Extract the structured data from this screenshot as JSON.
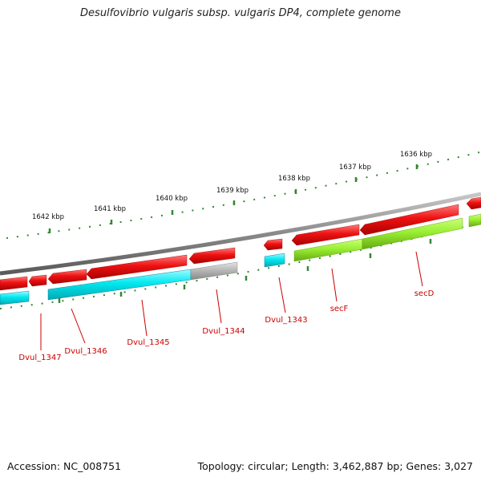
{
  "title": "Desulfovibrio vulgaris subsp. vulgaris DP4, complete genome",
  "footer": {
    "accession": "Accession: NC_008751",
    "topology": "Topology: circular; Length: 3,462,887 bp; Genes: 3,027"
  },
  "scale_ticks": [
    "1642 kbp",
    "1641 kbp",
    "1640 kbp",
    "1639 kbp",
    "1638 kbp",
    "1637 kbp",
    "1636 kbp"
  ],
  "gene_labels": [
    "Dvul_1347",
    "Dvul_1346",
    "Dvul_1345",
    "Dvul_1344",
    "Dvul_1343",
    "secF",
    "secD"
  ],
  "colors": {
    "backbone": "#888888",
    "red_gene": "#ee1111",
    "cyan_gene": "#00e8f0",
    "green_gene": "#99ee33",
    "grey_gene": "#b8b8b8",
    "tick": "#338833",
    "label": "#cc0000"
  }
}
